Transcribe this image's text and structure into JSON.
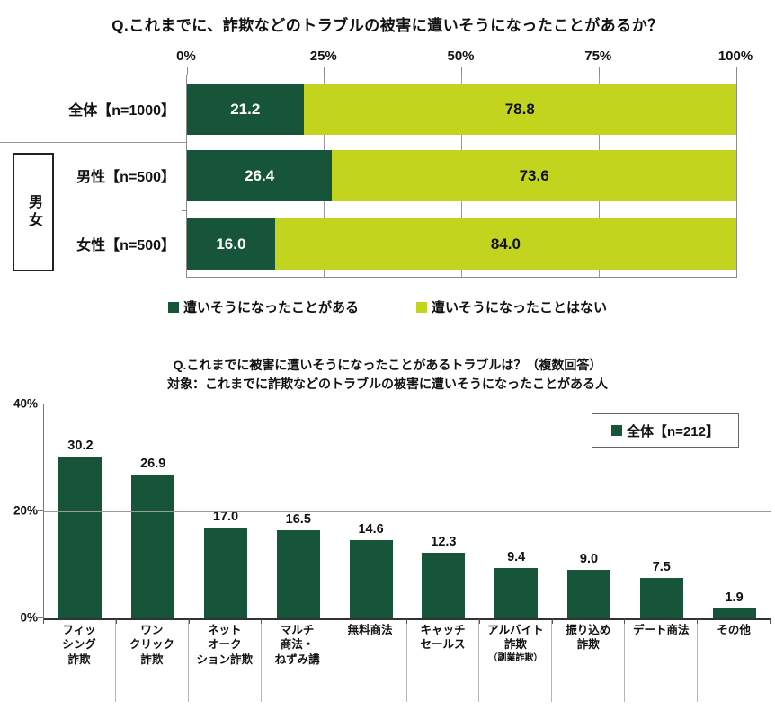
{
  "page": {
    "background": "#ffffff"
  },
  "colors": {
    "bar_dark_green": "#17553a",
    "bar_yellow_green": "#c3d41e",
    "grid": "#9a9a9a",
    "plot_border": "#8a8a8a",
    "axis": "#333333",
    "label_separator": "#b5b5b5"
  },
  "chart_data": [
    {
      "type": "bar",
      "orientation": "horizontal-stacked",
      "title": "Q.これまでに、詐欺などのトラブルの被害に遭いそうになったことがあるか？",
      "categories": [
        "全体【n=1000】",
        "男性【n=500】",
        "女性【n=500】"
      ],
      "group_label": "男女",
      "group_rows": [
        1,
        2
      ],
      "series": [
        {
          "name": "遭いそうになったことがある",
          "color": "#17553a",
          "text_color": "#ffffff",
          "values": [
            21.2,
            26.4,
            16.0
          ]
        },
        {
          "name": "遭いそうになったことはない",
          "color": "#c3d41e",
          "text_color": "#111111",
          "values": [
            78.8,
            73.6,
            84.0
          ]
        }
      ],
      "x_tick_labels": [
        "0%",
        "25%",
        "50%",
        "75%",
        "100%"
      ],
      "x_tick_values": [
        0,
        25,
        50,
        75,
        100
      ],
      "xlim": [
        0,
        100
      ],
      "legend_position": "bottom",
      "grid": true
    },
    {
      "type": "bar",
      "orientation": "vertical",
      "title": "Q.これまでに被害に遭いそうになったことがあるトラブルは？（複数回答）",
      "subtitle": "対象：これまでに詐欺などのトラブルの被害に遭いそうになったことがある人",
      "legend_label": "全体【n=212】",
      "bar_color": "#17553a",
      "categories": [
        {
          "label": "フィッシング詐欺",
          "lines": [
            "フィッ",
            "シング",
            "詐欺"
          ]
        },
        {
          "label": "ワンクリック詐欺",
          "lines": [
            "ワン",
            "クリック",
            "詐欺"
          ]
        },
        {
          "label": "ネットオークション詐欺",
          "lines": [
            "ネット",
            "オーク",
            "ション詐欺"
          ]
        },
        {
          "label": "マルチ商法・ねずみ講",
          "lines": [
            "マルチ",
            "商法・",
            "ねずみ講"
          ]
        },
        {
          "label": "無料商法",
          "lines": [
            "無料商法"
          ]
        },
        {
          "label": "キャッチセールス",
          "lines": [
            "キャッチ",
            "セールス"
          ]
        },
        {
          "label": "アルバイト詐欺（副業詐欺）",
          "lines": [
            "アルバイト",
            "詐欺"
          ],
          "sub": "（副業詐欺）"
        },
        {
          "label": "振り込め詐欺",
          "lines": [
            "振り込め",
            "詐欺"
          ]
        },
        {
          "label": "デート商法",
          "lines": [
            "デート商法"
          ]
        },
        {
          "label": "その他",
          "lines": [
            "その他"
          ]
        }
      ],
      "values": [
        30.2,
        26.9,
        17.0,
        16.5,
        14.6,
        12.3,
        9.4,
        9.0,
        7.5,
        1.9
      ],
      "y_tick_labels": [
        "0%",
        "20%",
        "40%"
      ],
      "y_tick_values": [
        0,
        20,
        40
      ],
      "ylim": [
        0,
        40
      ],
      "legend_position": "top-right",
      "grid": true
    }
  ]
}
